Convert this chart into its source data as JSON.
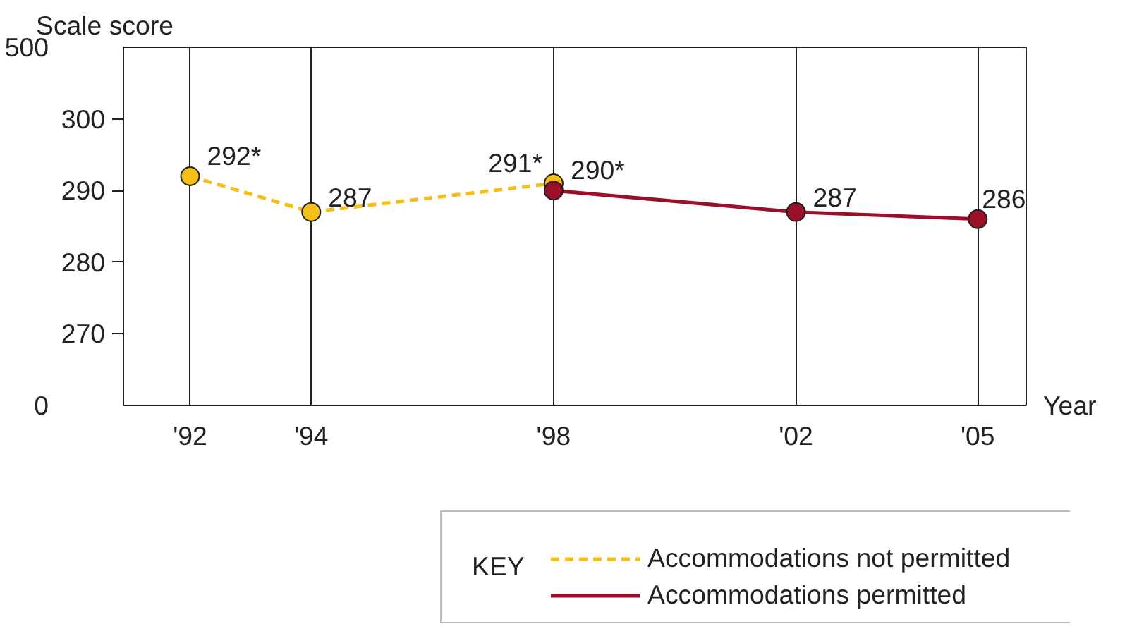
{
  "chart_data": {
    "type": "line",
    "ylabel": "Scale score",
    "xlabel": "Year",
    "legend_title": "KEY",
    "series": [
      {
        "name": "Accommodations not permitted",
        "color": "#f5be18",
        "line_style": "dashed",
        "x": [
          1992,
          1994,
          1998
        ],
        "values": [
          292,
          287,
          291
        ],
        "value_labels": [
          "292*",
          "287",
          "291*"
        ]
      },
      {
        "name": "Accommodations permitted",
        "color": "#9b1028",
        "line_style": "solid",
        "x": [
          1998,
          2002,
          2005
        ],
        "values": [
          290,
          287,
          286
        ],
        "value_labels": [
          "290*",
          "287",
          "286"
        ]
      }
    ],
    "marker": "circle",
    "xlim": [
      1990.9,
      2005.8
    ],
    "xticks": [
      {
        "value": 1992,
        "label": "'92"
      },
      {
        "value": 1994,
        "label": "'94"
      },
      {
        "value": 1998,
        "label": "'98"
      },
      {
        "value": 2002,
        "label": "'02"
      },
      {
        "value": 2005,
        "label": "'05"
      }
    ],
    "ylim": [
      260,
      310
    ],
    "yticks": [
      270,
      280,
      290,
      300
    ],
    "annotations": [
      "500",
      "0"
    ],
    "grid": "x",
    "legend": "bottom right"
  }
}
